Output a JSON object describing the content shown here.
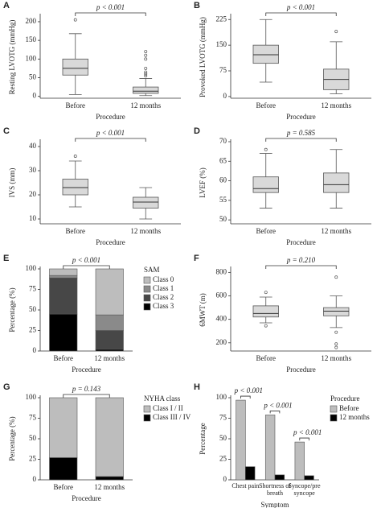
{
  "chart_data": [
    {
      "label": "A",
      "type": "box",
      "ylabel": "Resting LVOTG (mmHg)",
      "xlabel": "Procedure",
      "categories": [
        "Before",
        "12 months"
      ],
      "boxes": [
        {
          "whislo": 5,
          "q1": 57,
          "med": 75,
          "q3": 100,
          "whishi": 168,
          "fliers": [
            205
          ]
        },
        {
          "whislo": 2,
          "q1": 8,
          "med": 14,
          "q3": 25,
          "whishi": 48,
          "fliers": [
            55,
            60,
            65,
            75,
            100,
            110,
            120
          ]
        }
      ],
      "ylim": [
        -5,
        215
      ],
      "yticks": [
        0,
        50,
        100,
        150,
        200
      ],
      "annotation": "p < 0.001",
      "color": "#d9d9d9"
    },
    {
      "label": "B",
      "type": "box",
      "ylabel": "Provoked LVOTG (mmHg)",
      "xlabel": "Procedure",
      "categories": [
        "Before",
        "12 months"
      ],
      "boxes": [
        {
          "whislo": 42,
          "q1": 97,
          "med": 122,
          "q3": 150,
          "whishi": 225,
          "fliers": []
        },
        {
          "whislo": 8,
          "q1": 20,
          "med": 50,
          "q3": 80,
          "whishi": 160,
          "fliers": [
            190
          ]
        }
      ],
      "ylim": [
        -5,
        235
      ],
      "yticks": [
        0,
        75,
        150,
        225
      ],
      "annotation": "p < 0.001",
      "color": "#d9d9d9"
    },
    {
      "label": "C",
      "type": "box",
      "ylabel": "IVS (mm)",
      "xlabel": "Procedure",
      "categories": [
        "Before",
        "12 months"
      ],
      "boxes": [
        {
          "whislo": 15,
          "q1": 20,
          "med": 23,
          "q3": 26.5,
          "whishi": 34,
          "fliers": [
            36
          ]
        },
        {
          "whislo": 10,
          "q1": 14.5,
          "med": 17,
          "q3": 19,
          "whishi": 23,
          "fliers": []
        }
      ],
      "ylim": [
        8,
        42
      ],
      "yticks": [
        10,
        20,
        30,
        40
      ],
      "annotation": "p < 0.001",
      "color": "#d9d9d9"
    },
    {
      "label": "D",
      "type": "box",
      "ylabel": "LVEF (%)",
      "xlabel": "Procedure",
      "categories": [
        "Before",
        "12 months"
      ],
      "boxes": [
        {
          "whislo": 53,
          "q1": 57,
          "med": 58,
          "q3": 61,
          "whishi": 67,
          "fliers": [
            68
          ]
        },
        {
          "whislo": 53,
          "q1": 57,
          "med": 59,
          "q3": 62,
          "whishi": 68,
          "fliers": []
        }
      ],
      "ylim": [
        49,
        70
      ],
      "yticks": [
        50,
        55,
        60,
        65,
        70
      ],
      "annotation": "p = 0.585",
      "color": "#d9d9d9"
    },
    {
      "label": "E",
      "type": "stacked",
      "ylabel": "Percentage (%)",
      "xlabel": "Procedure",
      "categories": [
        "Before",
        "12 months"
      ],
      "legend_title": "SAM",
      "series": [
        {
          "name": "Class 0",
          "color": "#bdbdbd",
          "values": [
            8,
            56
          ]
        },
        {
          "name": "Class 1",
          "color": "#8a8a8a",
          "values": [
            3,
            19
          ]
        },
        {
          "name": "Class 2",
          "color": "#474747",
          "values": [
            44,
            23
          ]
        },
        {
          "name": "Class 3",
          "color": "#000000",
          "values": [
            45,
            2
          ]
        }
      ],
      "ylim": [
        0,
        100
      ],
      "yticks": [
        0,
        25,
        50,
        75,
        100
      ],
      "annotation": "p < 0.001"
    },
    {
      "label": "F",
      "type": "box",
      "ylabel": "6MWT (m)",
      "xlabel": "Procedure",
      "categories": [
        "Before",
        "12 months"
      ],
      "boxes": [
        {
          "whislo": 370,
          "q1": 420,
          "med": 450,
          "q3": 515,
          "whishi": 590,
          "fliers": [
            630,
            345
          ]
        },
        {
          "whislo": 330,
          "q1": 430,
          "med": 470,
          "q3": 500,
          "whishi": 600,
          "fliers": [
            760,
            290,
            190,
            160
          ]
        }
      ],
      "ylim": [
        130,
        830
      ],
      "yticks": [
        200,
        400,
        600,
        800
      ],
      "annotation": "p = 0.210",
      "color": "#d9d9d9"
    },
    {
      "label": "G",
      "type": "stacked",
      "ylabel": "Percentage (%)",
      "xlabel": "Procedure",
      "categories": [
        "Before",
        "12 months"
      ],
      "legend_title": "NYHA class",
      "series": [
        {
          "name": "Class I / II",
          "color": "#bdbdbd",
          "values": [
            73,
            96
          ]
        },
        {
          "name": "Class III / IV",
          "color": "#000000",
          "values": [
            27,
            4
          ]
        }
      ],
      "ylim": [
        0,
        100
      ],
      "yticks": [
        0,
        25,
        50,
        75,
        100
      ],
      "annotation": "p = 0.143"
    },
    {
      "label": "H",
      "type": "grouped",
      "ylabel": "Percentage",
      "xlabel": "Symptom",
      "categories": [
        "Chest pain",
        "Shortness of breath",
        "Syncope/pre-syncope"
      ],
      "legend_title": "Procedure",
      "series": [
        {
          "name": "Before",
          "color": "#bdbdbd",
          "values": [
            97,
            79,
            46
          ]
        },
        {
          "name": "12 months",
          "color": "#000000",
          "values": [
            16,
            6,
            5
          ]
        }
      ],
      "ylim": [
        0,
        100
      ],
      "yticks": [
        0,
        25,
        50,
        75,
        100
      ],
      "annotations": [
        "p < 0.001",
        "p < 0.001",
        "p < 0.001"
      ]
    }
  ]
}
